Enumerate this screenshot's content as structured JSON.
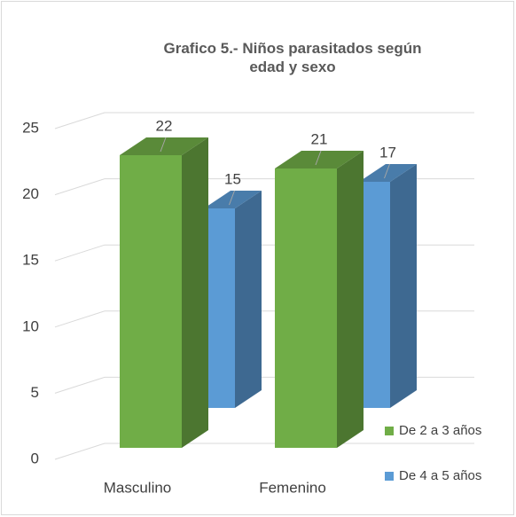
{
  "chart_data": {
    "type": "bar3d",
    "title": "Grafico 5.- Niños parasitados según edad y sexo",
    "categories": [
      "Masculino",
      "Femenino"
    ],
    "series": [
      {
        "name": "De 2 a 3 años",
        "color": "#70ad47",
        "values": [
          22,
          21
        ]
      },
      {
        "name": "De 4 a 5 años",
        "color": "#5b9bd5",
        "values": [
          15,
          17
        ]
      }
    ],
    "ylim": [
      0,
      25
    ],
    "yticks": [
      0,
      5,
      10,
      15,
      20,
      25
    ],
    "grid": true,
    "legend": "bottom-right"
  }
}
